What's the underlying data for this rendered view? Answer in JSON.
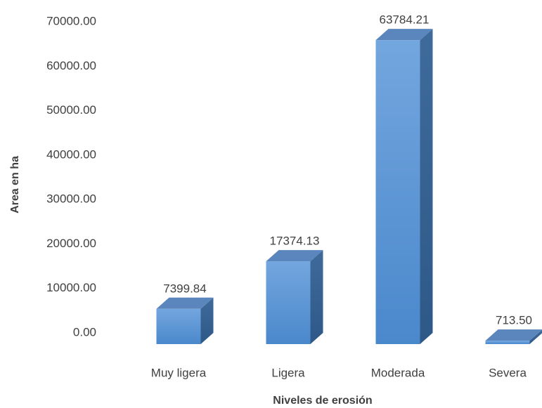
{
  "chart_data": {
    "type": "bar3d",
    "x_label": "Niveles de erosión",
    "y_label": "Area en ha",
    "categories": [
      "Muy ligera",
      "Ligera",
      "Moderada",
      "Severa"
    ],
    "values": [
      7399.84,
      17374.13,
      63784.21,
      713.5
    ],
    "value_labels": [
      "7399.84",
      "17374.13",
      "63784.21",
      "713.50"
    ],
    "color": "#5b9bd5",
    "ylim": [
      0,
      70000
    ],
    "yticks": [
      {
        "value": 0,
        "label": "0.00"
      },
      {
        "value": 10000,
        "label": "10000.00"
      },
      {
        "value": 20000,
        "label": "20000.00"
      },
      {
        "value": 30000,
        "label": "30000.00"
      },
      {
        "value": 40000,
        "label": "40000.00"
      },
      {
        "value": 50000,
        "label": "50000.00"
      },
      {
        "value": 60000,
        "label": "60000.00"
      },
      {
        "value": 70000,
        "label": "70000.00"
      }
    ],
    "grid": false
  }
}
